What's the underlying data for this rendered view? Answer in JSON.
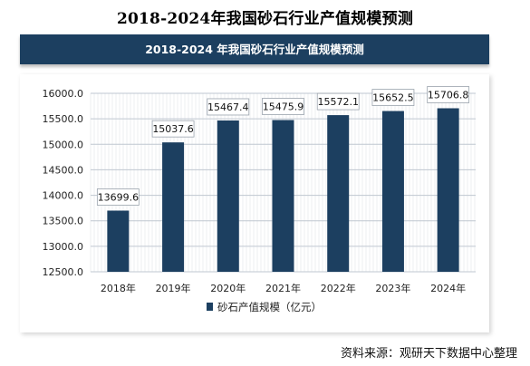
{
  "page": {
    "outer_title": "2018-2024年我国砂石行业产值规模预测",
    "source": "资料来源：观研天下数据中心整理"
  },
  "chart_data": {
    "type": "bar",
    "title": "2018-2024 年我国砂石行业产值规模预测",
    "categories": [
      "2018年",
      "2019年",
      "2020年",
      "2021年",
      "2022年",
      "2023年",
      "2024年"
    ],
    "series": [
      {
        "name": "砂石产值规模（亿元）",
        "values": [
          13699.6,
          15037.6,
          15467.4,
          15475.9,
          15572.1,
          15652.5,
          15706.8
        ],
        "labels": [
          "13699.6",
          "15037.6",
          "15467.4",
          "15475.9",
          "15572.1",
          "15652.5",
          "15706.8"
        ]
      }
    ],
    "ylim": [
      12500,
      16000
    ],
    "yticks": [
      "12500.0",
      "13000.0",
      "13500.0",
      "14000.0",
      "14500.0",
      "15000.0",
      "15500.0",
      "16000.0"
    ],
    "grid": true,
    "legend": "bottom-center",
    "colors": {
      "bar": "#1c3f60",
      "banner": "#1c3f60",
      "grid": "#bfc7d0"
    }
  }
}
